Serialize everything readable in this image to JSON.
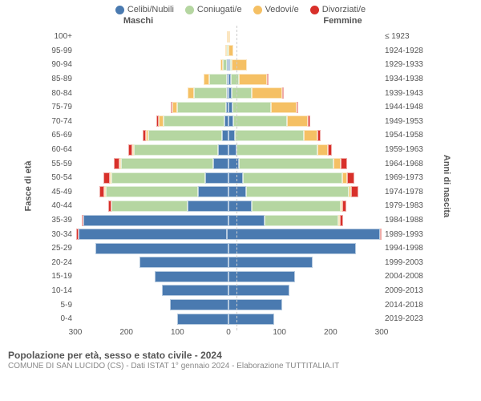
{
  "legend": {
    "items": [
      {
        "label": "Celibi/Nubili",
        "color": "#4a7ab0"
      },
      {
        "label": "Coniugati/e",
        "color": "#b5d6a1"
      },
      {
        "label": "Vedovi/e",
        "color": "#f5c064"
      },
      {
        "label": "Divorziati/e",
        "color": "#d8302a"
      }
    ]
  },
  "headers": {
    "male": "Maschi",
    "female": "Femmine"
  },
  "axes": {
    "left_label": "Fasce di età",
    "right_label": "Anni di nascita",
    "x_ticks": [
      300,
      200,
      100,
      0,
      100,
      200,
      300
    ],
    "x_max": 300
  },
  "colors": {
    "single": "#4a7ab0",
    "married": "#b5d6a1",
    "widowed": "#f5c064",
    "divorced": "#d8302a",
    "background": "#ffffff",
    "grid": "#cccccc"
  },
  "title": "Popolazione per età, sesso e stato civile - 2024",
  "subtitle": "COMUNE DI SAN LUCIDO (CS) - Dati ISTAT 1° gennaio 2024 - Elaborazione TUTTITALIA.IT",
  "rows": [
    {
      "age": "100+",
      "year": "≤ 1923",
      "m": {
        "single": 0,
        "married": 0,
        "widowed": 2,
        "divorced": 0
      },
      "f": {
        "single": 0,
        "married": 0,
        "widowed": 3,
        "divorced": 0
      }
    },
    {
      "age": "95-99",
      "year": "1924-1928",
      "m": {
        "single": 0,
        "married": 2,
        "widowed": 3,
        "divorced": 0
      },
      "f": {
        "single": 0,
        "married": 0,
        "widowed": 10,
        "divorced": 0
      }
    },
    {
      "age": "90-94",
      "year": "1929-1933",
      "m": {
        "single": 1,
        "married": 8,
        "widowed": 5,
        "divorced": 0
      },
      "f": {
        "single": 2,
        "married": 3,
        "widowed": 30,
        "divorced": 0
      }
    },
    {
      "age": "85-89",
      "year": "1934-1938",
      "m": {
        "single": 2,
        "married": 35,
        "widowed": 10,
        "divorced": 0
      },
      "f": {
        "single": 5,
        "married": 15,
        "widowed": 55,
        "divorced": 1
      }
    },
    {
      "age": "80-84",
      "year": "1939-1943",
      "m": {
        "single": 3,
        "married": 65,
        "widowed": 12,
        "divorced": 0
      },
      "f": {
        "single": 6,
        "married": 40,
        "widowed": 60,
        "divorced": 2
      }
    },
    {
      "age": "75-79",
      "year": "1944-1948",
      "m": {
        "single": 5,
        "married": 95,
        "widowed": 10,
        "divorced": 2
      },
      "f": {
        "single": 8,
        "married": 75,
        "widowed": 50,
        "divorced": 3
      }
    },
    {
      "age": "70-74",
      "year": "1949-1953",
      "m": {
        "single": 8,
        "married": 120,
        "widowed": 8,
        "divorced": 5
      },
      "f": {
        "single": 10,
        "married": 105,
        "widowed": 40,
        "divorced": 5
      }
    },
    {
      "age": "65-69",
      "year": "1954-1958",
      "m": {
        "single": 12,
        "married": 145,
        "widowed": 5,
        "divorced": 6
      },
      "f": {
        "single": 12,
        "married": 135,
        "widowed": 28,
        "divorced": 6
      }
    },
    {
      "age": "60-64",
      "year": "1959-1963",
      "m": {
        "single": 20,
        "married": 165,
        "widowed": 4,
        "divorced": 8
      },
      "f": {
        "single": 15,
        "married": 160,
        "widowed": 20,
        "divorced": 8
      }
    },
    {
      "age": "55-59",
      "year": "1964-1968",
      "m": {
        "single": 30,
        "married": 180,
        "widowed": 3,
        "divorced": 12
      },
      "f": {
        "single": 20,
        "married": 185,
        "widowed": 15,
        "divorced": 12
      }
    },
    {
      "age": "50-54",
      "year": "1969-1973",
      "m": {
        "single": 45,
        "married": 185,
        "widowed": 2,
        "divorced": 12
      },
      "f": {
        "single": 28,
        "married": 195,
        "widowed": 10,
        "divorced": 14
      }
    },
    {
      "age": "45-49",
      "year": "1974-1978",
      "m": {
        "single": 60,
        "married": 180,
        "widowed": 1,
        "divorced": 10
      },
      "f": {
        "single": 35,
        "married": 200,
        "widowed": 6,
        "divorced": 14
      }
    },
    {
      "age": "40-44",
      "year": "1979-1983",
      "m": {
        "single": 80,
        "married": 150,
        "widowed": 0,
        "divorced": 6
      },
      "f": {
        "single": 45,
        "married": 175,
        "widowed": 3,
        "divorced": 8
      }
    },
    {
      "age": "35-39",
      "year": "1984-1988",
      "m": {
        "single": 285,
        "married": 0,
        "widowed": 0,
        "divorced": 3
      },
      "f": {
        "single": 70,
        "married": 145,
        "widowed": 1,
        "divorced": 6
      }
    },
    {
      "age": "30-34",
      "year": "1989-1993",
      "m": {
        "single": 290,
        "married": 0,
        "widowed": 0,
        "divorced": 5
      },
      "f": {
        "single": 300,
        "married": 0,
        "widowed": 0,
        "divorced": 3
      }
    },
    {
      "age": "25-29",
      "year": "1994-1998",
      "m": {
        "single": 260,
        "married": 0,
        "widowed": 0,
        "divorced": 0
      },
      "f": {
        "single": 250,
        "married": 0,
        "widowed": 0,
        "divorced": 0
      }
    },
    {
      "age": "20-24",
      "year": "1999-2003",
      "m": {
        "single": 175,
        "married": 0,
        "widowed": 0,
        "divorced": 0
      },
      "f": {
        "single": 165,
        "married": 0,
        "widowed": 0,
        "divorced": 0
      }
    },
    {
      "age": "15-19",
      "year": "2004-2008",
      "m": {
        "single": 145,
        "married": 0,
        "widowed": 0,
        "divorced": 0
      },
      "f": {
        "single": 130,
        "married": 0,
        "widowed": 0,
        "divorced": 0
      }
    },
    {
      "age": "10-14",
      "year": "2009-2013",
      "m": {
        "single": 130,
        "married": 0,
        "widowed": 0,
        "divorced": 0
      },
      "f": {
        "single": 120,
        "married": 0,
        "widowed": 0,
        "divorced": 0
      }
    },
    {
      "age": "5-9",
      "year": "2014-2018",
      "m": {
        "single": 115,
        "married": 0,
        "widowed": 0,
        "divorced": 0
      },
      "f": {
        "single": 105,
        "married": 0,
        "widowed": 0,
        "divorced": 0
      }
    },
    {
      "age": "0-4",
      "year": "2019-2023",
      "m": {
        "single": 100,
        "married": 0,
        "widowed": 0,
        "divorced": 0
      },
      "f": {
        "single": 90,
        "married": 0,
        "widowed": 0,
        "divorced": 0
      }
    }
  ]
}
